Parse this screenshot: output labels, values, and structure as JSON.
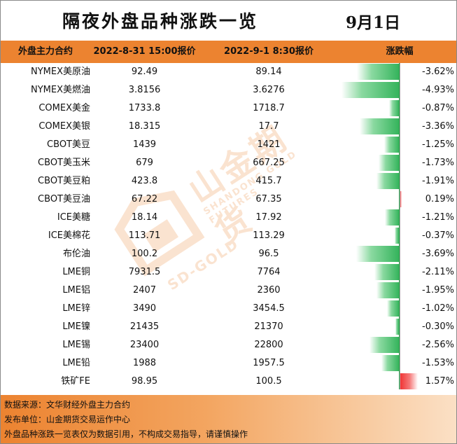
{
  "title": "隔夜外盘品种涨跌一览",
  "date": "9月1日",
  "headers": {
    "contract": "外盘主力合约",
    "price1": "2022-8-31 15:00报价",
    "price2": "2022-9-1 8:30报价",
    "change": "涨跌幅"
  },
  "rows": [
    {
      "name": "NYMEX美原油",
      "p1": "92.49",
      "p2": "89.14",
      "pct": "-3.62%",
      "change": -3.62
    },
    {
      "name": "NYMEX美燃油",
      "p1": "3.8156",
      "p2": "3.6276",
      "pct": "-4.93%",
      "change": -4.93
    },
    {
      "name": "COMEX美金",
      "p1": "1733.8",
      "p2": "1718.7",
      "pct": "-0.87%",
      "change": -0.87
    },
    {
      "name": "COMEX美银",
      "p1": "18.315",
      "p2": "17.7",
      "pct": "-3.36%",
      "change": -3.36
    },
    {
      "name": "CBOT美豆",
      "p1": "1439",
      "p2": "1421",
      "pct": "-1.25%",
      "change": -1.25
    },
    {
      "name": "CBOT美玉米",
      "p1": "679",
      "p2": "667.25",
      "pct": "-1.73%",
      "change": -1.73
    },
    {
      "name": "CBOT美豆粕",
      "p1": "423.8",
      "p2": "415.7",
      "pct": "-1.91%",
      "change": -1.91
    },
    {
      "name": "CBOT美豆油",
      "p1": "67.22",
      "p2": "67.35",
      "pct": "0.19%",
      "change": 0.19
    },
    {
      "name": "ICE美糖",
      "p1": "18.14",
      "p2": "17.92",
      "pct": "-1.21%",
      "change": -1.21
    },
    {
      "name": "ICE美棉花",
      "p1": "113.71",
      "p2": "113.29",
      "pct": "-0.37%",
      "change": -0.37
    },
    {
      "name": "布伦油",
      "p1": "100.2",
      "p2": "96.5",
      "pct": "-3.69%",
      "change": -3.69
    },
    {
      "name": "LME铜",
      "p1": "7931.5",
      "p2": "7764",
      "pct": "-2.11%",
      "change": -2.11
    },
    {
      "name": "LME铝",
      "p1": "2407",
      "p2": "2360",
      "pct": "-1.95%",
      "change": -1.95
    },
    {
      "name": "LME锌",
      "p1": "3490",
      "p2": "3454.5",
      "pct": "-1.02%",
      "change": -1.02
    },
    {
      "name": "LME镍",
      "p1": "21435",
      "p2": "21370",
      "pct": "-0.30%",
      "change": -0.3
    },
    {
      "name": "LME锡",
      "p1": "23400",
      "p2": "22800",
      "pct": "-2.56%",
      "change": -2.56
    },
    {
      "name": "LME铅",
      "p1": "1988",
      "p2": "1957.5",
      "pct": "-1.53%",
      "change": -1.53
    },
    {
      "name": "铁矿FE",
      "p1": "98.95",
      "p2": "100.5",
      "pct": "1.57%",
      "change": 1.57
    }
  ],
  "watermark": {
    "main": "山金期货",
    "sub": "SHANDONG GOLD FUTURES",
    "sub2": "SD-GOLD"
  },
  "footer": {
    "line1": "数据来源：文华财经外盘主力合约",
    "line2": "发布单位：山金期货交易运作中心",
    "line3": "外盘品种涨跌一览表仅为数据引用，不构成交易指导，请谨慎操作"
  },
  "colors": {
    "header": "#ec8330",
    "negative_bar": "#35b45c",
    "positive_bar": "#f03030"
  }
}
